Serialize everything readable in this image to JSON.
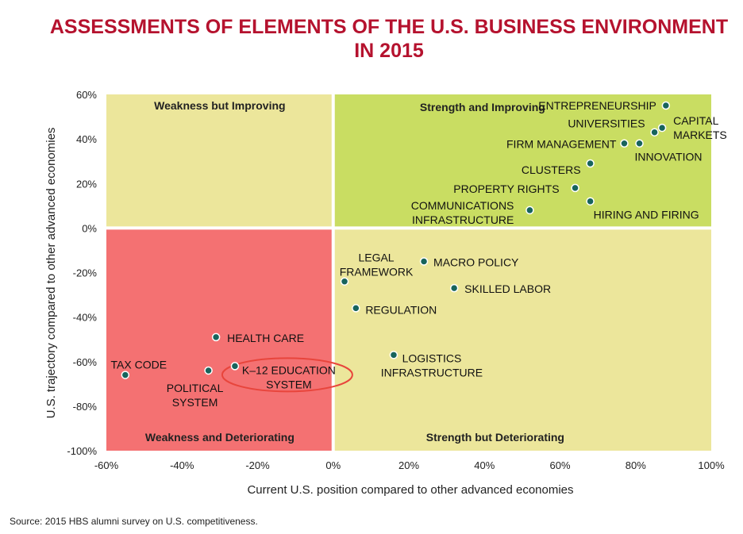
{
  "chart_data": {
    "type": "scatter",
    "title": "ASSESSMENTS OF ELEMENTS OF THE U.S. BUSINESS ENVIRONMENT",
    "title_line2": "IN 2015",
    "xlabel": "Current U.S. position compared to other advanced economies",
    "ylabel": "U.S. trajectory compared to other advanced economies",
    "xlim": [
      -60,
      100
    ],
    "ylim": [
      -100,
      60
    ],
    "x_ticks": [
      "-60%",
      "-40%",
      "-20%",
      "0%",
      "20%",
      "40%",
      "60%",
      "80%",
      "100%"
    ],
    "y_ticks": [
      "60%",
      "40%",
      "20%",
      "0%",
      "-20%",
      "-40%",
      "-60%",
      "-80%",
      "-100%"
    ],
    "x_tick_values": [
      -60,
      -40,
      -20,
      0,
      20,
      40,
      60,
      80,
      100
    ],
    "y_tick_values": [
      60,
      40,
      20,
      0,
      -20,
      -40,
      -60,
      -80,
      -100
    ],
    "grid": false,
    "quadrants": [
      {
        "id": "top-left",
        "label": "Weakness but Improving",
        "color": "#ece69b"
      },
      {
        "id": "top-right",
        "label": "Strength and Improving",
        "color": "#c9dd62"
      },
      {
        "id": "bottom-left",
        "label": "Weakness and Deteriorating",
        "color": "#f47172"
      },
      {
        "id": "bottom-right",
        "label": "Strength but Deteriorating",
        "color": "#ece69b"
      }
    ],
    "marker_color": "#17645c",
    "highlight_color": "#e8453c",
    "points": [
      {
        "label": "ENTREPRENEURSHIP",
        "x": 88,
        "y": 55
      },
      {
        "label": "UNIVERSITIES",
        "x": 85,
        "y": 43
      },
      {
        "label": "CAPITAL MARKETS",
        "x": 87,
        "y": 45
      },
      {
        "label": "FIRM MANAGEMENT",
        "x": 77,
        "y": 38
      },
      {
        "label": "INNOVATION",
        "x": 81,
        "y": 38
      },
      {
        "label": "CLUSTERS",
        "x": 68,
        "y": 29
      },
      {
        "label": "PROPERTY RIGHTS",
        "x": 64,
        "y": 18
      },
      {
        "label": "HIRING AND FIRING",
        "x": 68,
        "y": 12
      },
      {
        "label": "COMMUNICATIONS INFRASTRUCTURE",
        "x": 52,
        "y": 8
      },
      {
        "label": "MACRO POLICY",
        "x": 24,
        "y": -15
      },
      {
        "label": "LEGAL FRAMEWORK",
        "x": 3,
        "y": -24
      },
      {
        "label": "SKILLED LABOR",
        "x": 32,
        "y": -27
      },
      {
        "label": "REGULATION",
        "x": 6,
        "y": -36
      },
      {
        "label": "LOGISTICS INFRASTRUCTURE",
        "x": 16,
        "y": -57
      },
      {
        "label": "HEALTH CARE",
        "x": -31,
        "y": -49
      },
      {
        "label": "K-12 EDUCATION SYSTEM",
        "x": -26,
        "y": -62,
        "highlighted": true
      },
      {
        "label": "POLITICAL SYSTEM",
        "x": -33,
        "y": -64
      },
      {
        "label": "TAX CODE",
        "x": -55,
        "y": -66
      }
    ]
  },
  "point_label_lines": {
    "ENTREPRENEURSHIP": [
      "ENTREPRENEURSHIP"
    ],
    "UNIVERSITIES": [
      "UNIVERSITIES"
    ],
    "CAPITAL MARKETS": [
      "CAPITAL",
      "MARKETS"
    ],
    "FIRM MANAGEMENT": [
      "FIRM MANAGEMENT"
    ],
    "INNOVATION": [
      "INNOVATION"
    ],
    "CLUSTERS": [
      "CLUSTERS"
    ],
    "PROPERTY RIGHTS": [
      "PROPERTY RIGHTS"
    ],
    "HIRING AND FIRING": [
      "HIRING AND FIRING"
    ],
    "COMMUNICATIONS INFRASTRUCTURE": [
      "COMMUNICATIONS",
      "INFRASTRUCTURE"
    ],
    "MACRO POLICY": [
      "MACRO POLICY"
    ],
    "LEGAL FRAMEWORK": [
      "LEGAL",
      "FRAMEWORK"
    ],
    "SKILLED LABOR": [
      "SKILLED LABOR"
    ],
    "REGULATION": [
      "REGULATION"
    ],
    "LOGISTICS INFRASTRUCTURE": [
      "LOGISTICS",
      "INFRASTRUCTURE"
    ],
    "HEALTH CARE": [
      "HEALTH CARE"
    ],
    "K-12 EDUCATION SYSTEM": [
      "K–12 EDUCATION",
      "SYSTEM"
    ],
    "POLITICAL SYSTEM": [
      "POLITICAL",
      "SYSTEM"
    ],
    "TAX CODE": [
      "TAX CODE"
    ]
  },
  "source": "Source: 2015 HBS alumni survey on U.S. competitiveness."
}
